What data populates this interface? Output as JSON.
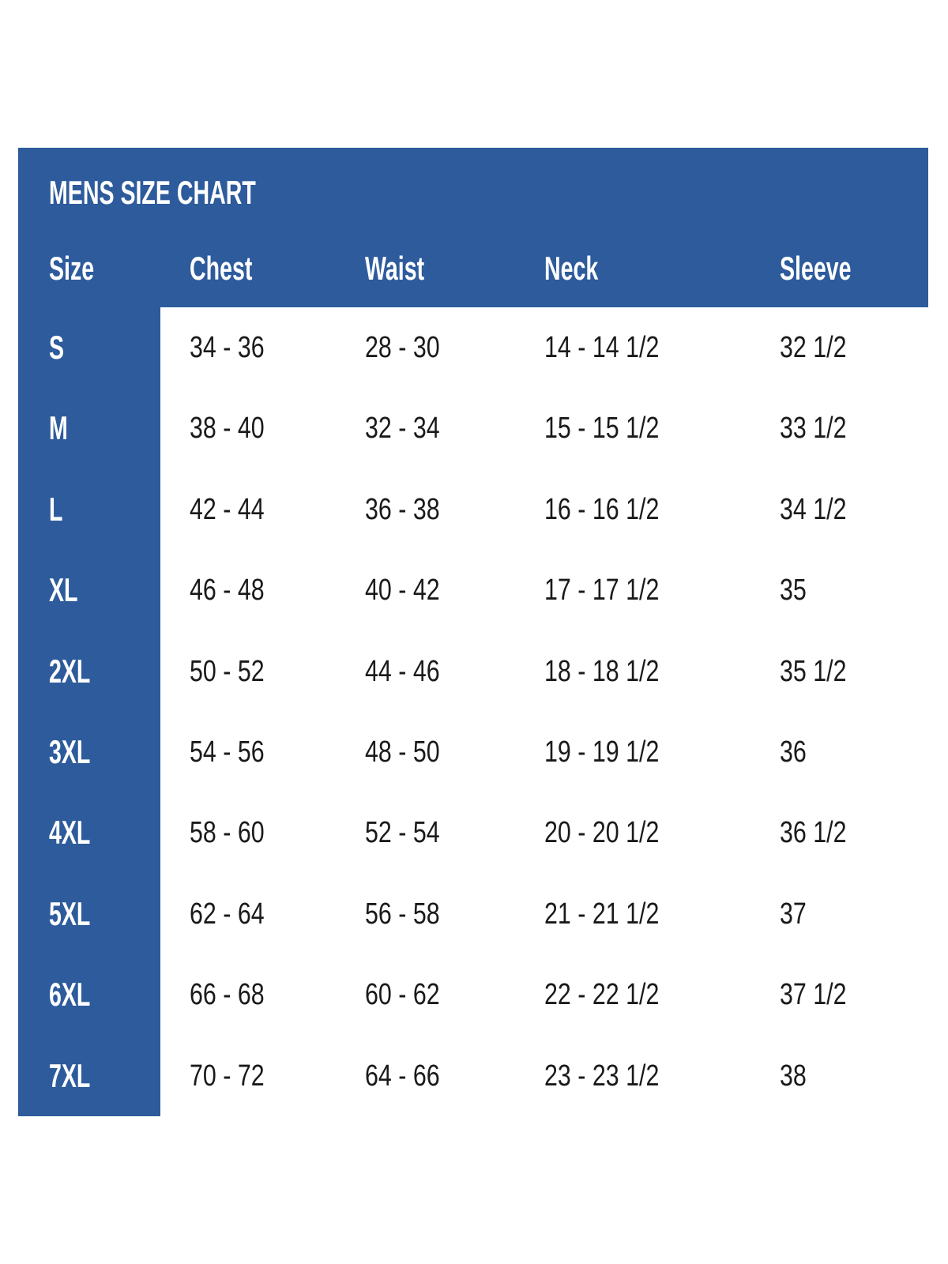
{
  "colors": {
    "panel_blue": "#2d5b9c",
    "body_text": "#1a1a1a",
    "header_text": "#ffffff",
    "background": "#ffffff"
  },
  "chart_data": {
    "type": "table",
    "title": "MENS SIZE CHART",
    "columns": [
      "Size",
      "Chest",
      "Waist",
      "Neck",
      "Sleeve"
    ],
    "rows": [
      {
        "size": "S",
        "chest": "34 - 36",
        "waist": "28 - 30",
        "neck": "14 - 14 1/2",
        "sleeve": "32 1/2"
      },
      {
        "size": "M",
        "chest": "38 - 40",
        "waist": "32 - 34",
        "neck": "15 - 15 1/2",
        "sleeve": "33 1/2"
      },
      {
        "size": "L",
        "chest": "42 - 44",
        "waist": "36 - 38",
        "neck": "16 - 16 1/2",
        "sleeve": "34 1/2"
      },
      {
        "size": "XL",
        "chest": "46 - 48",
        "waist": "40 - 42",
        "neck": "17 - 17 1/2",
        "sleeve": "35"
      },
      {
        "size": "2XL",
        "chest": "50 - 52",
        "waist": "44 - 46",
        "neck": "18 - 18 1/2",
        "sleeve": "35 1/2"
      },
      {
        "size": "3XL",
        "chest": "54 - 56",
        "waist": "48 - 50",
        "neck": "19 - 19 1/2",
        "sleeve": "36"
      },
      {
        "size": "4XL",
        "chest": "58 - 60",
        "waist": "52 - 54",
        "neck": "20 - 20 1/2",
        "sleeve": "36 1/2"
      },
      {
        "size": "5XL",
        "chest": "62 - 64",
        "waist": "56 - 58",
        "neck": "21 - 21 1/2",
        "sleeve": "37"
      },
      {
        "size": "6XL",
        "chest": "66 - 68",
        "waist": "60 - 62",
        "neck": "22 - 22 1/2",
        "sleeve": "37 1/2"
      },
      {
        "size": "7XL",
        "chest": "70 - 72",
        "waist": "64 - 66",
        "neck": "23 - 23 1/2",
        "sleeve": "38"
      }
    ],
    "layout": {
      "grid": "off",
      "legend": "none",
      "header_on_blue": true,
      "size_column_on_blue": true
    }
  }
}
